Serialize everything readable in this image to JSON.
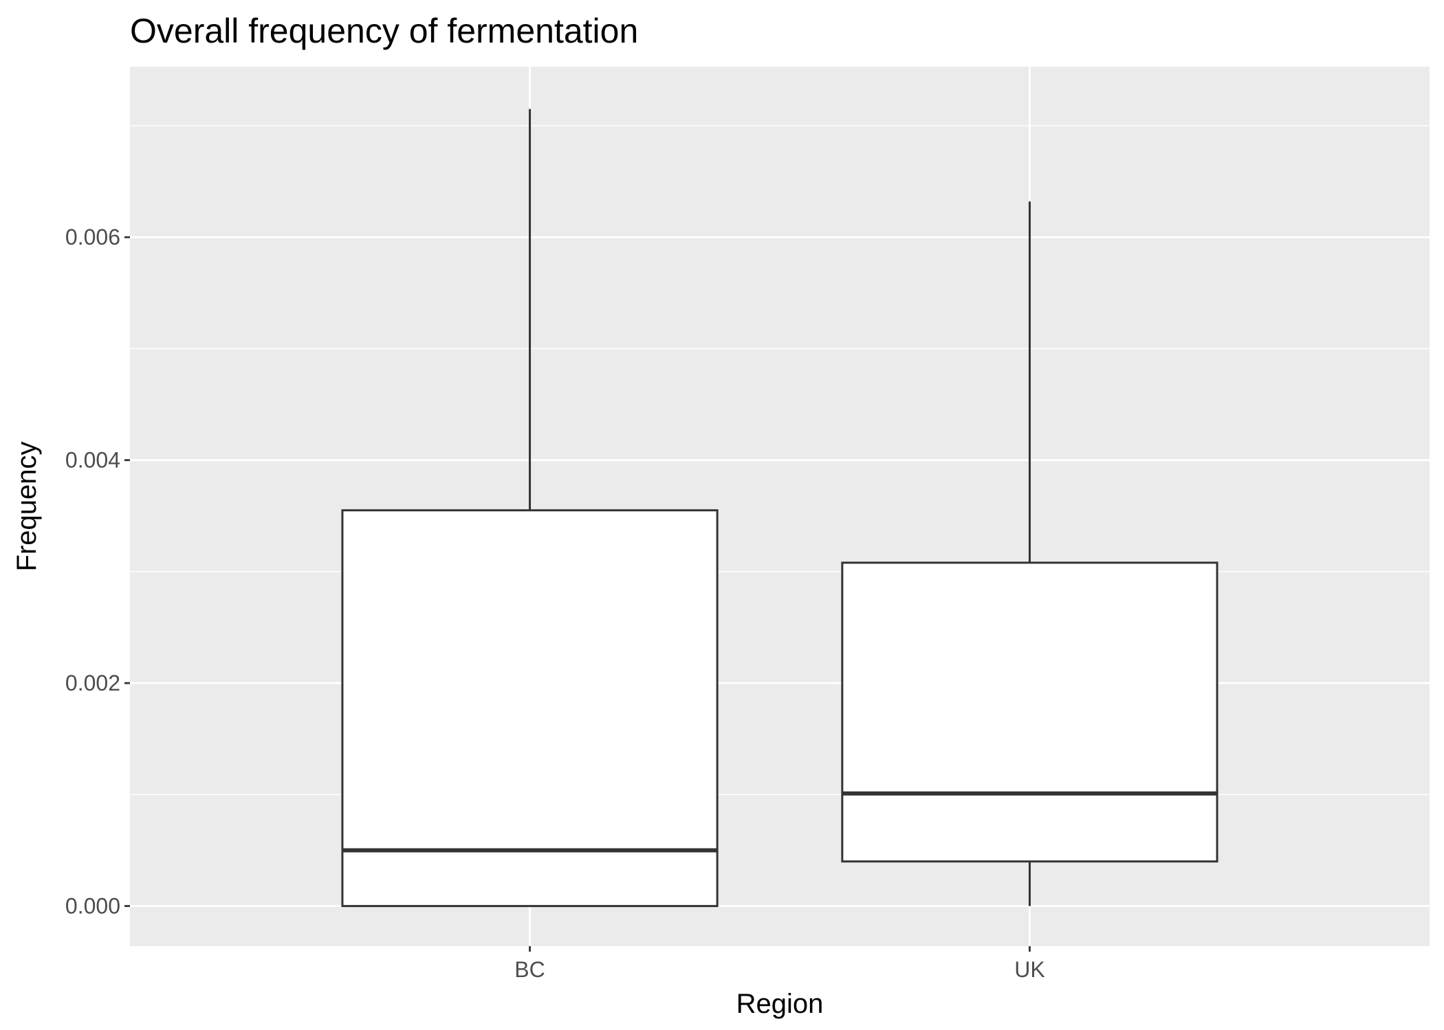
{
  "chart_data": {
    "type": "boxplot",
    "title": "Overall frequency of fermentation",
    "xlabel": "Region",
    "ylabel": "Frequency",
    "categories": [
      "BC",
      "UK"
    ],
    "boxes": [
      {
        "category": "BC",
        "min": 0.0,
        "q1": 0.0,
        "median": 0.0005,
        "q3": 0.00355,
        "max": 0.00715
      },
      {
        "category": "UK",
        "min": 0.0,
        "q1": 0.0004,
        "median": 0.00101,
        "q3": 0.00308,
        "max": 0.00632
      }
    ],
    "yticks": [
      0.0,
      0.002,
      0.004,
      0.006
    ],
    "ytick_labels": [
      "0.000",
      "0.002",
      "0.004",
      "0.006"
    ],
    "ylim": [
      -0.00036,
      0.00753
    ],
    "grid": true,
    "colors": {
      "panel_background": "#ebebeb",
      "grid": "#ffffff",
      "box_fill": "#ffffff",
      "box_line": "#333333",
      "tick": "#333333"
    }
  }
}
